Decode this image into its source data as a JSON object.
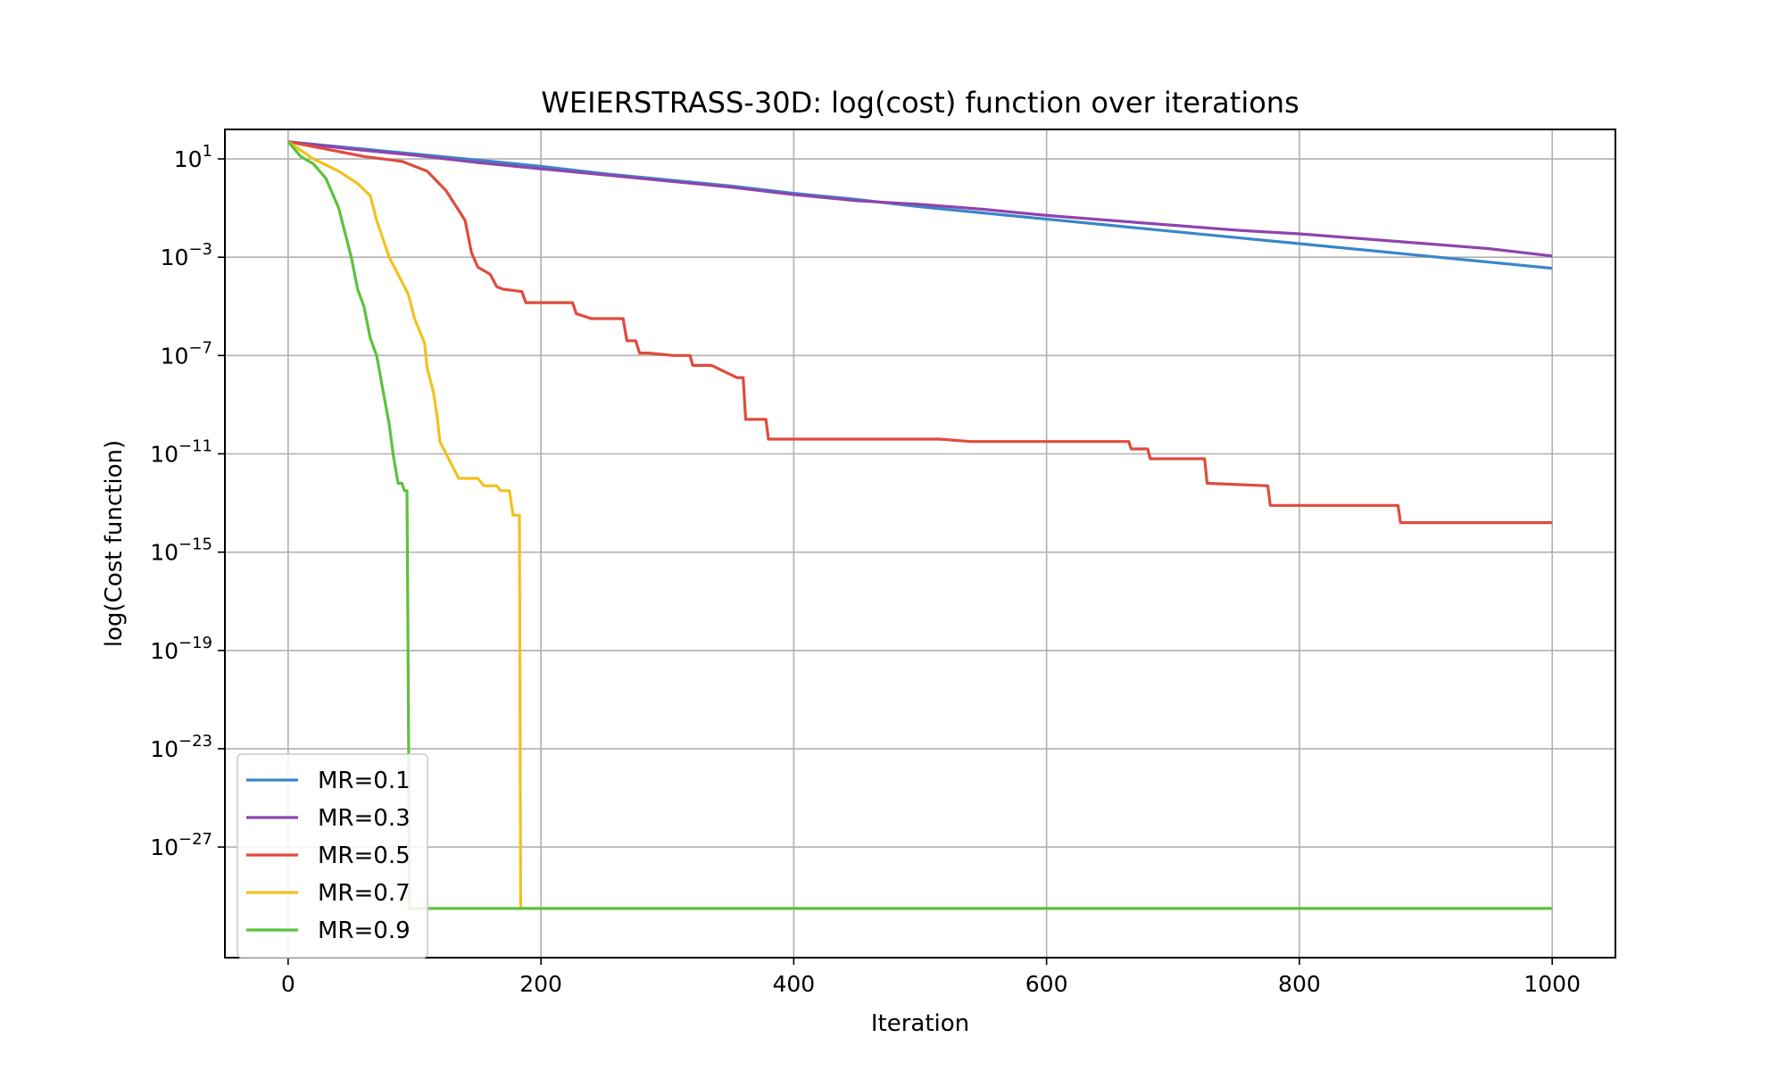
{
  "chart_data": {
    "type": "line",
    "title": "WEIERSTRASS-30D: log(cost) function over iterations",
    "xlabel": "Iteration",
    "ylabel": "log(Cost function)",
    "xlim": [
      -50,
      1050
    ],
    "ylim_log10": [
      -31.5,
      2.2
    ],
    "y_scale": "log",
    "x_ticks": [
      0,
      200,
      400,
      600,
      800,
      1000
    ],
    "y_ticks_exp": [
      1,
      -3,
      -7,
      -11,
      -15,
      -19,
      -23,
      -27
    ],
    "y_tick_labels": [
      {
        "base": "10",
        "exp": "1"
      },
      {
        "base": "10",
        "exp": "−3"
      },
      {
        "base": "10",
        "exp": "−7"
      },
      {
        "base": "10",
        "exp": "−11"
      },
      {
        "base": "10",
        "exp": "−15"
      },
      {
        "base": "10",
        "exp": "−19"
      },
      {
        "base": "10",
        "exp": "−23"
      },
      {
        "base": "10",
        "exp": "−27"
      }
    ],
    "grid": true,
    "legend_position": "lower-left",
    "note": "y values are given as log10(cost)",
    "series": [
      {
        "name": "MR=0.1",
        "color": "#3a86c8",
        "x": [
          0,
          50,
          100,
          150,
          200,
          250,
          300,
          350,
          400,
          450,
          500,
          550,
          600,
          650,
          700,
          750,
          800,
          850,
          900,
          950,
          1000
        ],
        "y": [
          1.7,
          1.45,
          1.2,
          0.95,
          0.7,
          0.4,
          0.15,
          -0.1,
          -0.4,
          -0.65,
          -0.95,
          -1.2,
          -1.45,
          -1.7,
          -1.95,
          -2.2,
          -2.45,
          -2.7,
          -2.95,
          -3.2,
          -3.45
        ]
      },
      {
        "name": "MR=0.3",
        "color": "#8e44ad",
        "x": [
          0,
          50,
          100,
          150,
          200,
          250,
          300,
          350,
          400,
          450,
          500,
          550,
          600,
          650,
          700,
          750,
          800,
          850,
          900,
          950,
          1000
        ],
        "y": [
          1.7,
          1.4,
          1.15,
          0.85,
          0.6,
          0.35,
          0.1,
          -0.15,
          -0.45,
          -0.7,
          -0.85,
          -1.05,
          -1.3,
          -1.5,
          -1.7,
          -1.9,
          -2.05,
          -2.25,
          -2.45,
          -2.65,
          -2.95
        ]
      },
      {
        "name": "MR=0.5",
        "color": "#e04b3c",
        "x": [
          0,
          30,
          60,
          90,
          110,
          125,
          140,
          145,
          150,
          160,
          165,
          170,
          185,
          188,
          225,
          228,
          240,
          265,
          268,
          275,
          278,
          285,
          305,
          318,
          320,
          335,
          355,
          360,
          362,
          378,
          380,
          515,
          540,
          600,
          665,
          667,
          680,
          682,
          725,
          727,
          775,
          777,
          878,
          880,
          1000
        ],
        "y": [
          1.7,
          1.4,
          1.1,
          0.9,
          0.5,
          -0.3,
          -1.5,
          -2.8,
          -3.4,
          -3.7,
          -4.2,
          -4.3,
          -4.4,
          -4.85,
          -4.85,
          -5.3,
          -5.5,
          -5.5,
          -6.4,
          -6.4,
          -6.9,
          -6.9,
          -7.0,
          -7.0,
          -7.4,
          -7.4,
          -7.9,
          -7.9,
          -9.6,
          -9.6,
          -10.4,
          -10.4,
          -10.5,
          -10.5,
          -10.5,
          -10.8,
          -10.8,
          -11.2,
          -11.2,
          -12.2,
          -12.3,
          -13.1,
          -13.1,
          -13.8,
          -13.8
        ]
      },
      {
        "name": "MR=0.7",
        "color": "#f2c11d",
        "x": [
          0,
          20,
          40,
          55,
          65,
          70,
          80,
          90,
          95,
          100,
          108,
          110,
          115,
          118,
          120,
          125,
          130,
          135,
          150,
          155,
          165,
          168,
          175,
          178,
          183,
          184,
          1000
        ],
        "y": [
          1.7,
          1.0,
          0.5,
          0.0,
          -0.5,
          -1.5,
          -3.0,
          -4.0,
          -4.5,
          -5.5,
          -6.5,
          -7.5,
          -8.5,
          -9.5,
          -10.5,
          -11.0,
          -11.5,
          -12.0,
          -12.0,
          -12.3,
          -12.3,
          -12.5,
          -12.5,
          -13.5,
          -13.5,
          -29.5,
          -29.5
        ]
      },
      {
        "name": "MR=0.9",
        "color": "#5cc23b",
        "x": [
          0,
          10,
          20,
          30,
          40,
          50,
          55,
          60,
          65,
          70,
          75,
          80,
          83,
          85,
          87,
          90,
          92,
          94,
          95,
          96,
          1000
        ],
        "y": [
          1.7,
          1.1,
          0.8,
          0.2,
          -1.0,
          -3.0,
          -4.3,
          -5.0,
          -6.3,
          -7.0,
          -8.4,
          -9.8,
          -11.0,
          -11.6,
          -12.2,
          -12.2,
          -12.5,
          -12.5,
          -20.0,
          -29.5,
          -29.5
        ]
      }
    ]
  }
}
